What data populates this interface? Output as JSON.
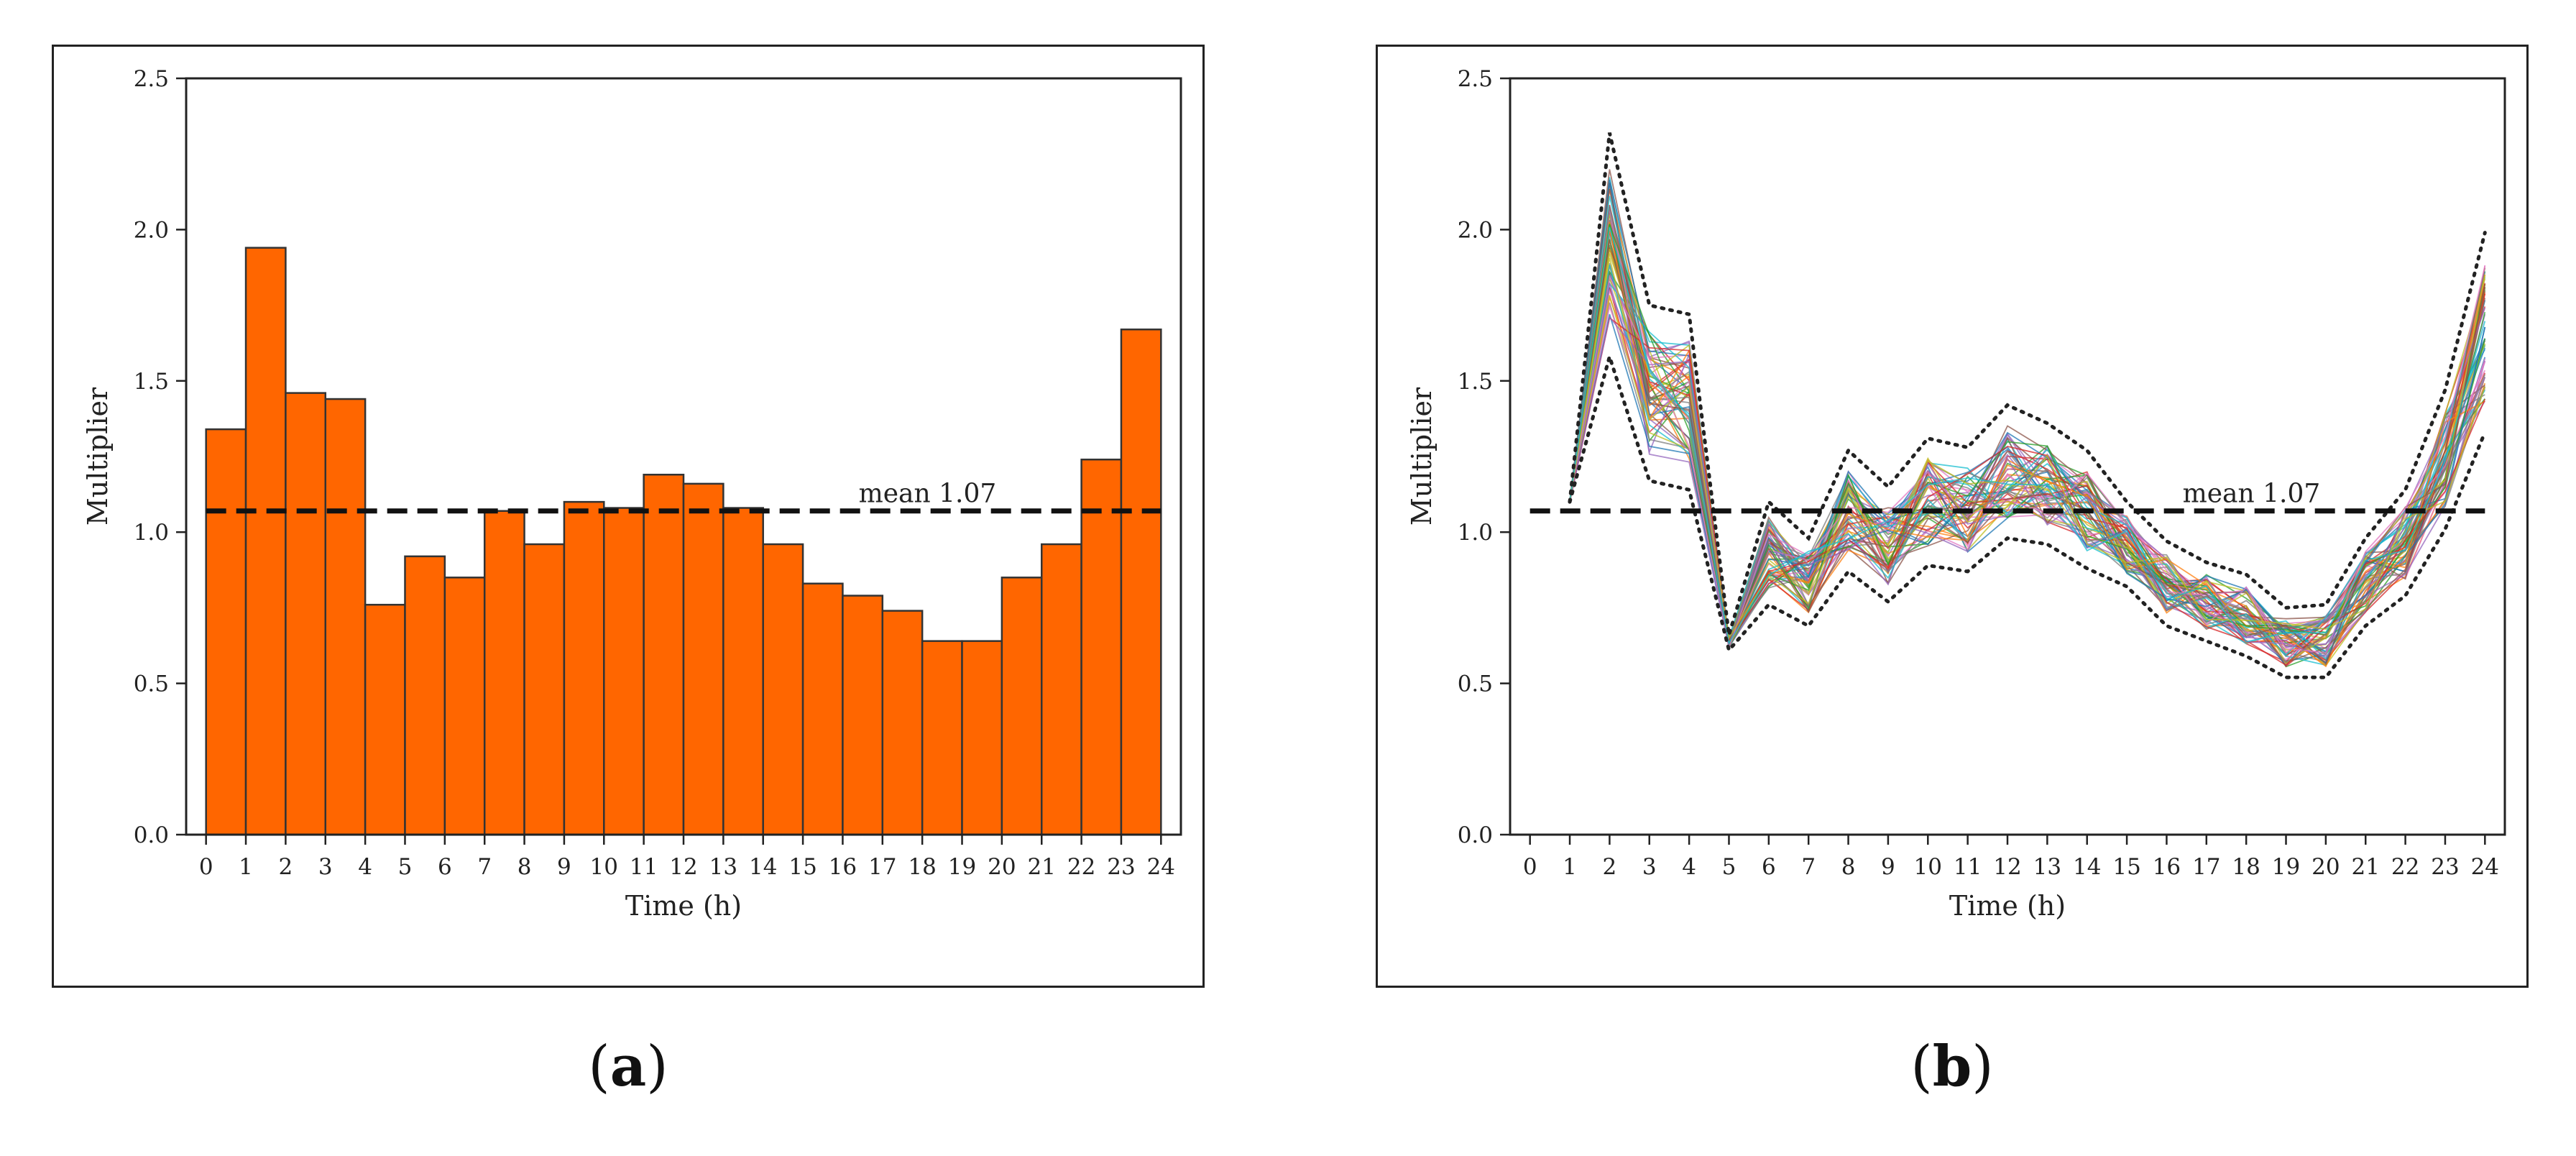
{
  "captions": {
    "a": "a",
    "b": "b"
  },
  "colors": {
    "bar_fill": "#ff6600",
    "bar_edge": "#333333",
    "mean_line": "#111111",
    "envelope": "#222222"
  },
  "chart_data": [
    {
      "type": "bar",
      "panel": "a",
      "xlabel": "Time (h)",
      "ylabel": "Multiplier",
      "ylim": [
        0,
        2.5
      ],
      "xlim": [
        -0.5,
        24.5
      ],
      "yticks": [
        "0.0",
        "0.5",
        "1.0",
        "1.5",
        "2.0",
        "2.5"
      ],
      "xticks": [
        "0",
        "1",
        "2",
        "3",
        "4",
        "5",
        "6",
        "7",
        "8",
        "9",
        "10",
        "11",
        "12",
        "13",
        "14",
        "15",
        "16",
        "17",
        "18",
        "19",
        "20",
        "21",
        "22",
        "23",
        "24"
      ],
      "bin_edges": [
        0,
        1,
        2,
        3,
        4,
        5,
        6,
        7,
        8,
        9,
        10,
        11,
        12,
        13,
        14,
        15,
        16,
        17,
        18,
        19,
        20,
        21,
        22,
        23,
        24
      ],
      "values": [
        1.34,
        1.94,
        1.46,
        1.44,
        0.76,
        0.92,
        0.85,
        1.07,
        0.96,
        1.1,
        1.08,
        1.19,
        1.16,
        1.08,
        0.96,
        0.83,
        0.79,
        0.74,
        0.64,
        0.64,
        0.85,
        0.96,
        1.24,
        1.67
      ],
      "mean": 1.07,
      "mean_label": "mean 1.07",
      "grid": false
    },
    {
      "type": "line",
      "panel": "b",
      "xlabel": "Time (h)",
      "ylabel": "Multiplier",
      "ylim": [
        0,
        2.5
      ],
      "xlim": [
        -0.5,
        24.5
      ],
      "yticks": [
        "0.0",
        "0.5",
        "1.0",
        "1.5",
        "2.0",
        "2.5"
      ],
      "xticks": [
        "0",
        "1",
        "2",
        "3",
        "4",
        "5",
        "6",
        "7",
        "8",
        "9",
        "10",
        "11",
        "12",
        "13",
        "14",
        "15",
        "16",
        "17",
        "18",
        "19",
        "20",
        "21",
        "22",
        "23",
        "24"
      ],
      "x": [
        1,
        2,
        3,
        4,
        5,
        6,
        7,
        8,
        9,
        10,
        11,
        12,
        13,
        14,
        15,
        16,
        17,
        18,
        19,
        20,
        21,
        22,
        23,
        24
      ],
      "center": [
        1.34,
        1.94,
        1.46,
        1.44,
        0.76,
        0.92,
        0.85,
        1.07,
        0.96,
        1.1,
        1.08,
        1.19,
        1.16,
        1.08,
        0.96,
        0.83,
        0.79,
        0.74,
        0.64,
        0.64,
        0.85,
        0.96,
        1.24,
        1.67
      ],
      "upper": [
        1.1,
        2.32,
        1.75,
        1.72,
        0.66,
        1.1,
        0.98,
        1.27,
        1.15,
        1.31,
        1.28,
        1.42,
        1.36,
        1.27,
        1.1,
        0.97,
        0.9,
        0.86,
        0.75,
        0.76,
        0.98,
        1.14,
        1.47,
        1.99
      ],
      "lower": [
        1.1,
        1.58,
        1.17,
        1.14,
        0.61,
        0.76,
        0.69,
        0.87,
        0.77,
        0.89,
        0.87,
        0.98,
        0.96,
        0.88,
        0.82,
        0.69,
        0.64,
        0.59,
        0.52,
        0.52,
        0.69,
        0.79,
        1.01,
        1.33
      ],
      "realizations": 60,
      "mean": 1.07,
      "mean_label": "mean 1.07",
      "grid": false
    }
  ]
}
